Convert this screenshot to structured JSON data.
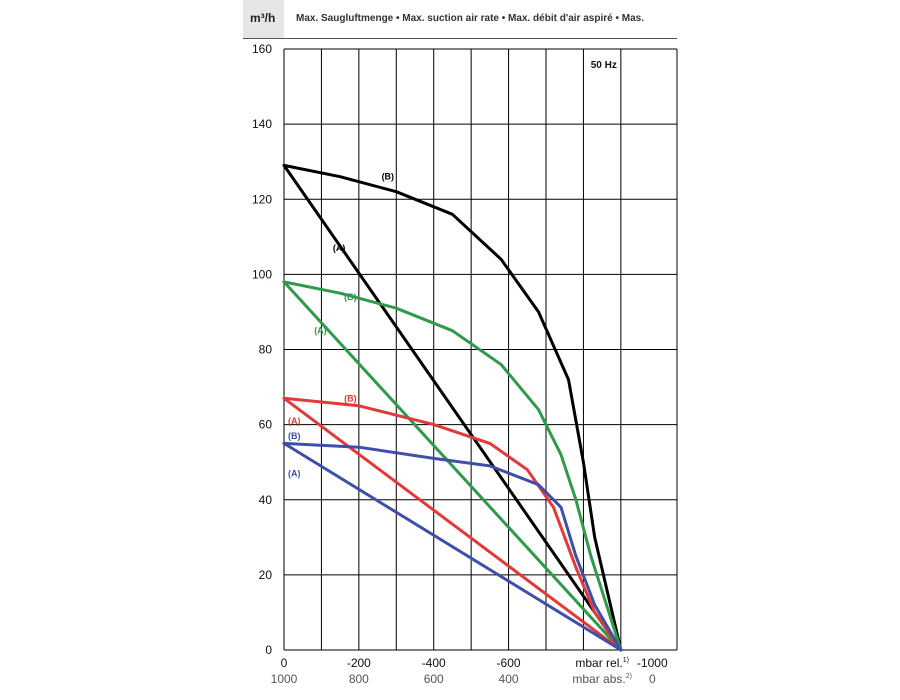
{
  "header": {
    "unit": "m³/h",
    "title": "Max. Saugluftmenge  •  Max. suction air rate  •  Max. débit d'air aspiré  •  Mas."
  },
  "chart_data": {
    "type": "line",
    "annotation": "50 Hz",
    "x_top_label": "mbar rel.",
    "x_top_sup": "1)",
    "x_bottom_label": "mbar abs.",
    "x_bottom_sup": "2)",
    "x_ticks_rel": [
      "0",
      "-200",
      "-400",
      "-600",
      "-1000"
    ],
    "x_ticks_abs": [
      "1000",
      "800",
      "600",
      "400",
      "0"
    ],
    "y_ticks": [
      "0",
      "20",
      "40",
      "60",
      "80",
      "100",
      "120",
      "140",
      "160"
    ],
    "xlim": [
      0,
      -1000
    ],
    "ylim": [
      0,
      160
    ],
    "grid": true,
    "colors": {
      "black": "#000000",
      "green": "#2e9a4a",
      "red": "#e03a3a",
      "blue": "#3f4fa8"
    },
    "series": [
      {
        "label": "(B)",
        "color": "#000000",
        "x": [
          0,
          -150,
          -300,
          -450,
          -580,
          -680,
          -760,
          -800,
          -830,
          -900
        ],
        "y": [
          129,
          126,
          122,
          116,
          104,
          90,
          72,
          50,
          30,
          0
        ]
      },
      {
        "label": "(A)",
        "color": "#000000",
        "x": [
          0,
          -900
        ],
        "y": [
          129,
          0
        ]
      },
      {
        "label": "(B)",
        "color": "#2e9a4a",
        "x": [
          0,
          -150,
          -300,
          -450,
          -580,
          -680,
          -740,
          -780,
          -820,
          -900
        ],
        "y": [
          98,
          95,
          91,
          85,
          76,
          64,
          52,
          40,
          25,
          0
        ]
      },
      {
        "label": "(A)",
        "color": "#2e9a4a",
        "x": [
          0,
          -900
        ],
        "y": [
          98,
          0
        ]
      },
      {
        "label": "(B)",
        "color": "#e03a3a",
        "x": [
          0,
          -200,
          -400,
          -550,
          -650,
          -720,
          -780,
          -830,
          -900
        ],
        "y": [
          67,
          65,
          60,
          55,
          48,
          38,
          22,
          10,
          0
        ]
      },
      {
        "label": "(A)",
        "color": "#e03a3a",
        "x": [
          0,
          -900
        ],
        "y": [
          67,
          0
        ]
      },
      {
        "label": "(B)",
        "color": "#3f4fa8",
        "x": [
          0,
          -200,
          -400,
          -550,
          -680,
          -740,
          -780,
          -830,
          -900
        ],
        "y": [
          55,
          54,
          51,
          49,
          44,
          38,
          25,
          12,
          0
        ]
      },
      {
        "label": "(A)",
        "color": "#3f4fa8",
        "x": [
          0,
          -900
        ],
        "y": [
          55,
          0
        ]
      }
    ],
    "labels": [
      {
        "text": "(B)",
        "color": "#000000",
        "x": -250,
        "y": 126
      },
      {
        "text": "(A)",
        "color": "#000000",
        "x": -120,
        "y": 107
      },
      {
        "text": "(B)",
        "color": "#2e9a4a",
        "x": -150,
        "y": 94
      },
      {
        "text": "(A)",
        "color": "#2e9a4a",
        "x": -70,
        "y": 85
      },
      {
        "text": "(B)",
        "color": "#e03a3a",
        "x": -150,
        "y": 67
      },
      {
        "text": "(A)",
        "color": "#e03a3a",
        "x": 0,
        "y": 61
      },
      {
        "text": "(B)",
        "color": "#3f4fa8",
        "x": 0,
        "y": 57
      },
      {
        "text": "(A)",
        "color": "#3f4fa8",
        "x": 0,
        "y": 47
      }
    ]
  }
}
